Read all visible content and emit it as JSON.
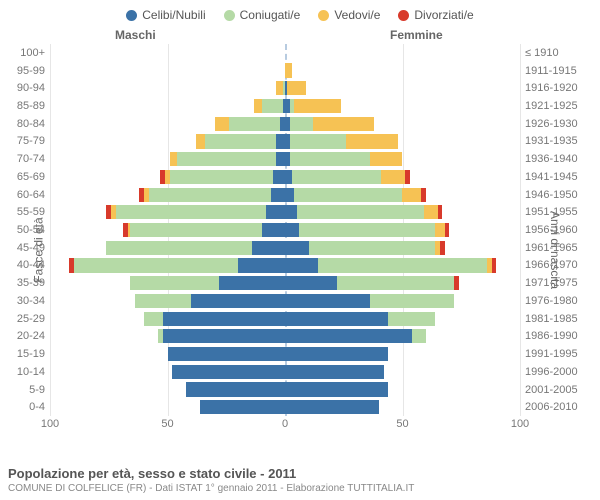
{
  "legend": [
    {
      "label": "Celibi/Nubili",
      "color": "#3b72a7"
    },
    {
      "label": "Coniugati/e",
      "color": "#b5daa6"
    },
    {
      "label": "Vedovi/e",
      "color": "#f6c254"
    },
    {
      "label": "Divorziati/e",
      "color": "#d83a2b"
    }
  ],
  "gender_labels": {
    "male": "Maschi",
    "female": "Femmine"
  },
  "y_axis_left_title": "Fasce di età",
  "y_axis_right_title": "Anni di nascita",
  "x_axis": {
    "min": 0,
    "max": 100,
    "ticks": [
      100,
      50,
      0,
      50,
      100
    ]
  },
  "colors": {
    "grid": "#e6e6e6",
    "center_dash": "#b7cbe0",
    "text": "#777777",
    "background": "#ffffff"
  },
  "footer": {
    "title": "Popolazione per età, sesso e stato civile - 2011",
    "subtitle": "COMUNE DI COLFELICE (FR) - Dati ISTAT 1° gennaio 2011 - Elaborazione TUTTITALIA.IT"
  },
  "age_bands": [
    {
      "age": "100+",
      "birth": "≤ 1910",
      "m": {
        "c": 0,
        "co": 0,
        "v": 0,
        "d": 0
      },
      "f": {
        "c": 0,
        "co": 0,
        "v": 0,
        "d": 0
      }
    },
    {
      "age": "95-99",
      "birth": "1911-1915",
      "m": {
        "c": 0,
        "co": 0,
        "v": 0,
        "d": 0
      },
      "f": {
        "c": 0,
        "co": 0,
        "v": 3,
        "d": 0
      }
    },
    {
      "age": "90-94",
      "birth": "1916-1920",
      "m": {
        "c": 0,
        "co": 1,
        "v": 3,
        "d": 0
      },
      "f": {
        "c": 1,
        "co": 0,
        "v": 8,
        "d": 0
      }
    },
    {
      "age": "85-89",
      "birth": "1921-1925",
      "m": {
        "c": 1,
        "co": 9,
        "v": 3,
        "d": 0
      },
      "f": {
        "c": 2,
        "co": 2,
        "v": 20,
        "d": 0
      }
    },
    {
      "age": "80-84",
      "birth": "1926-1930",
      "m": {
        "c": 2,
        "co": 22,
        "v": 6,
        "d": 0
      },
      "f": {
        "c": 2,
        "co": 10,
        "v": 26,
        "d": 0
      }
    },
    {
      "age": "75-79",
      "birth": "1931-1935",
      "m": {
        "c": 4,
        "co": 30,
        "v": 4,
        "d": 0
      },
      "f": {
        "c": 2,
        "co": 24,
        "v": 22,
        "d": 0
      }
    },
    {
      "age": "70-74",
      "birth": "1936-1940",
      "m": {
        "c": 4,
        "co": 42,
        "v": 3,
        "d": 0
      },
      "f": {
        "c": 2,
        "co": 34,
        "v": 14,
        "d": 0
      }
    },
    {
      "age": "65-69",
      "birth": "1941-1945",
      "m": {
        "c": 5,
        "co": 44,
        "v": 2,
        "d": 2
      },
      "f": {
        "c": 3,
        "co": 38,
        "v": 10,
        "d": 2
      }
    },
    {
      "age": "60-64",
      "birth": "1946-1950",
      "m": {
        "c": 6,
        "co": 52,
        "v": 2,
        "d": 2
      },
      "f": {
        "c": 4,
        "co": 46,
        "v": 8,
        "d": 2
      }
    },
    {
      "age": "55-59",
      "birth": "1951-1955",
      "m": {
        "c": 8,
        "co": 64,
        "v": 2,
        "d": 2
      },
      "f": {
        "c": 5,
        "co": 54,
        "v": 6,
        "d": 2
      }
    },
    {
      "age": "50-54",
      "birth": "1956-1960",
      "m": {
        "c": 10,
        "co": 56,
        "v": 1,
        "d": 2
      },
      "f": {
        "c": 6,
        "co": 58,
        "v": 4,
        "d": 2
      }
    },
    {
      "age": "45-49",
      "birth": "1961-1965",
      "m": {
        "c": 14,
        "co": 62,
        "v": 0,
        "d": 0
      },
      "f": {
        "c": 10,
        "co": 54,
        "v": 2,
        "d": 2
      }
    },
    {
      "age": "40-44",
      "birth": "1966-1970",
      "m": {
        "c": 20,
        "co": 70,
        "v": 0,
        "d": 2
      },
      "f": {
        "c": 14,
        "co": 72,
        "v": 2,
        "d": 2
      }
    },
    {
      "age": "35-39",
      "birth": "1971-1975",
      "m": {
        "c": 28,
        "co": 38,
        "v": 0,
        "d": 0
      },
      "f": {
        "c": 22,
        "co": 50,
        "v": 0,
        "d": 2
      }
    },
    {
      "age": "30-34",
      "birth": "1976-1980",
      "m": {
        "c": 40,
        "co": 24,
        "v": 0,
        "d": 0
      },
      "f": {
        "c": 36,
        "co": 36,
        "v": 0,
        "d": 0
      }
    },
    {
      "age": "25-29",
      "birth": "1981-1985",
      "m": {
        "c": 52,
        "co": 8,
        "v": 0,
        "d": 0
      },
      "f": {
        "c": 44,
        "co": 20,
        "v": 0,
        "d": 0
      }
    },
    {
      "age": "20-24",
      "birth": "1986-1990",
      "m": {
        "c": 52,
        "co": 2,
        "v": 0,
        "d": 0
      },
      "f": {
        "c": 54,
        "co": 6,
        "v": 0,
        "d": 0
      }
    },
    {
      "age": "15-19",
      "birth": "1991-1995",
      "m": {
        "c": 50,
        "co": 0,
        "v": 0,
        "d": 0
      },
      "f": {
        "c": 44,
        "co": 0,
        "v": 0,
        "d": 0
      }
    },
    {
      "age": "10-14",
      "birth": "1996-2000",
      "m": {
        "c": 48,
        "co": 0,
        "v": 0,
        "d": 0
      },
      "f": {
        "c": 42,
        "co": 0,
        "v": 0,
        "d": 0
      }
    },
    {
      "age": "5-9",
      "birth": "2001-2005",
      "m": {
        "c": 42,
        "co": 0,
        "v": 0,
        "d": 0
      },
      "f": {
        "c": 44,
        "co": 0,
        "v": 0,
        "d": 0
      }
    },
    {
      "age": "0-4",
      "birth": "2006-2010",
      "m": {
        "c": 36,
        "co": 0,
        "v": 0,
        "d": 0
      },
      "f": {
        "c": 40,
        "co": 0,
        "v": 0,
        "d": 0
      }
    }
  ]
}
